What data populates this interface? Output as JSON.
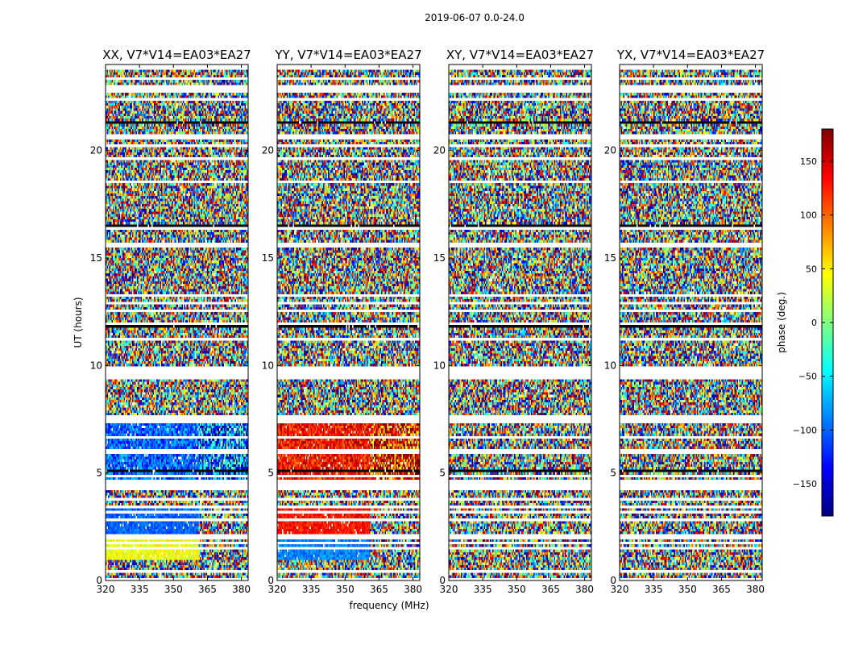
{
  "figure": {
    "suptitle": "2019-06-07 0.0-24.0"
  },
  "chart_data": {
    "type": "heatmap",
    "title": "2019-06-07 0.0-24.0",
    "xlabel": "frequency (MHz)",
    "ylabel": "UT (hours)",
    "xlim": [
      320,
      383
    ],
    "ylim": [
      0,
      24
    ],
    "x_ticks": [
      "320",
      "335",
      "350",
      "365",
      "380"
    ],
    "y_ticks": [
      "0",
      "5",
      "10",
      "15",
      "20"
    ],
    "panels": [
      {
        "title": "XX, V7*V14=EA03*EA27",
        "polarization": "XX",
        "mean_phase_low_ut": -100,
        "mean_phase_hours_1_to_2": 40
      },
      {
        "title": "YY, V7*V14=EA03*EA27",
        "polarization": "YY",
        "mean_phase_low_ut": 130,
        "mean_phase_hours_1_to_2": -90
      },
      {
        "title": "XY, V7*V14=EA03*EA27",
        "polarization": "XY",
        "mean_phase_low_ut": null,
        "mean_phase_hours_1_to_2": null
      },
      {
        "title": "YX, V7*V14=EA03*EA27",
        "polarization": "YX",
        "mean_phase_low_ut": null,
        "mean_phase_hours_1_to_2": null
      }
    ],
    "colorbar": {
      "label": "phase (deg.)",
      "range": [
        -180,
        180
      ],
      "ticks": [
        "150",
        "100",
        "50",
        "0",
        "−50",
        "−100",
        "−150"
      ],
      "tick_values": [
        150,
        100,
        50,
        0,
        -50,
        -100,
        -150
      ],
      "colormap": "jet"
    }
  }
}
